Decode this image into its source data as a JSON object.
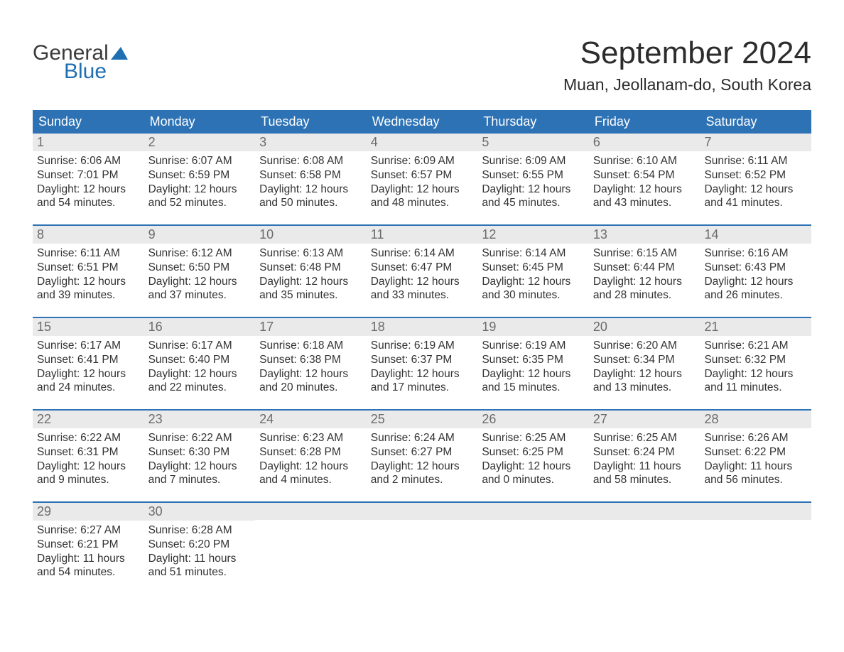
{
  "brand": {
    "name_part1": "General",
    "name_part2": "Blue",
    "accent_color": "#1f6fb2"
  },
  "title": "September 2024",
  "location": "Muan, Jeollanam-do, South Korea",
  "header_bg": "#2d72b5",
  "daynum_bg": "#eaeaea",
  "text_color": "#333333",
  "days_of_week": [
    "Sunday",
    "Monday",
    "Tuesday",
    "Wednesday",
    "Thursday",
    "Friday",
    "Saturday"
  ],
  "weeks": [
    [
      {
        "n": "1",
        "sunrise": "6:06 AM",
        "sunset": "7:01 PM",
        "dl1": "12 hours",
        "dl2": "and 54 minutes."
      },
      {
        "n": "2",
        "sunrise": "6:07 AM",
        "sunset": "6:59 PM",
        "dl1": "12 hours",
        "dl2": "and 52 minutes."
      },
      {
        "n": "3",
        "sunrise": "6:08 AM",
        "sunset": "6:58 PM",
        "dl1": "12 hours",
        "dl2": "and 50 minutes."
      },
      {
        "n": "4",
        "sunrise": "6:09 AM",
        "sunset": "6:57 PM",
        "dl1": "12 hours",
        "dl2": "and 48 minutes."
      },
      {
        "n": "5",
        "sunrise": "6:09 AM",
        "sunset": "6:55 PM",
        "dl1": "12 hours",
        "dl2": "and 45 minutes."
      },
      {
        "n": "6",
        "sunrise": "6:10 AM",
        "sunset": "6:54 PM",
        "dl1": "12 hours",
        "dl2": "and 43 minutes."
      },
      {
        "n": "7",
        "sunrise": "6:11 AM",
        "sunset": "6:52 PM",
        "dl1": "12 hours",
        "dl2": "and 41 minutes."
      }
    ],
    [
      {
        "n": "8",
        "sunrise": "6:11 AM",
        "sunset": "6:51 PM",
        "dl1": "12 hours",
        "dl2": "and 39 minutes."
      },
      {
        "n": "9",
        "sunrise": "6:12 AM",
        "sunset": "6:50 PM",
        "dl1": "12 hours",
        "dl2": "and 37 minutes."
      },
      {
        "n": "10",
        "sunrise": "6:13 AM",
        "sunset": "6:48 PM",
        "dl1": "12 hours",
        "dl2": "and 35 minutes."
      },
      {
        "n": "11",
        "sunrise": "6:14 AM",
        "sunset": "6:47 PM",
        "dl1": "12 hours",
        "dl2": "and 33 minutes."
      },
      {
        "n": "12",
        "sunrise": "6:14 AM",
        "sunset": "6:45 PM",
        "dl1": "12 hours",
        "dl2": "and 30 minutes."
      },
      {
        "n": "13",
        "sunrise": "6:15 AM",
        "sunset": "6:44 PM",
        "dl1": "12 hours",
        "dl2": "and 28 minutes."
      },
      {
        "n": "14",
        "sunrise": "6:16 AM",
        "sunset": "6:43 PM",
        "dl1": "12 hours",
        "dl2": "and 26 minutes."
      }
    ],
    [
      {
        "n": "15",
        "sunrise": "6:17 AM",
        "sunset": "6:41 PM",
        "dl1": "12 hours",
        "dl2": "and 24 minutes."
      },
      {
        "n": "16",
        "sunrise": "6:17 AM",
        "sunset": "6:40 PM",
        "dl1": "12 hours",
        "dl2": "and 22 minutes."
      },
      {
        "n": "17",
        "sunrise": "6:18 AM",
        "sunset": "6:38 PM",
        "dl1": "12 hours",
        "dl2": "and 20 minutes."
      },
      {
        "n": "18",
        "sunrise": "6:19 AM",
        "sunset": "6:37 PM",
        "dl1": "12 hours",
        "dl2": "and 17 minutes."
      },
      {
        "n": "19",
        "sunrise": "6:19 AM",
        "sunset": "6:35 PM",
        "dl1": "12 hours",
        "dl2": "and 15 minutes."
      },
      {
        "n": "20",
        "sunrise": "6:20 AM",
        "sunset": "6:34 PM",
        "dl1": "12 hours",
        "dl2": "and 13 minutes."
      },
      {
        "n": "21",
        "sunrise": "6:21 AM",
        "sunset": "6:32 PM",
        "dl1": "12 hours",
        "dl2": "and 11 minutes."
      }
    ],
    [
      {
        "n": "22",
        "sunrise": "6:22 AM",
        "sunset": "6:31 PM",
        "dl1": "12 hours",
        "dl2": "and 9 minutes."
      },
      {
        "n": "23",
        "sunrise": "6:22 AM",
        "sunset": "6:30 PM",
        "dl1": "12 hours",
        "dl2": "and 7 minutes."
      },
      {
        "n": "24",
        "sunrise": "6:23 AM",
        "sunset": "6:28 PM",
        "dl1": "12 hours",
        "dl2": "and 4 minutes."
      },
      {
        "n": "25",
        "sunrise": "6:24 AM",
        "sunset": "6:27 PM",
        "dl1": "12 hours",
        "dl2": "and 2 minutes."
      },
      {
        "n": "26",
        "sunrise": "6:25 AM",
        "sunset": "6:25 PM",
        "dl1": "12 hours",
        "dl2": "and 0 minutes."
      },
      {
        "n": "27",
        "sunrise": "6:25 AM",
        "sunset": "6:24 PM",
        "dl1": "11 hours",
        "dl2": "and 58 minutes."
      },
      {
        "n": "28",
        "sunrise": "6:26 AM",
        "sunset": "6:22 PM",
        "dl1": "11 hours",
        "dl2": "and 56 minutes."
      }
    ],
    [
      {
        "n": "29",
        "sunrise": "6:27 AM",
        "sunset": "6:21 PM",
        "dl1": "11 hours",
        "dl2": "and 54 minutes."
      },
      {
        "n": "30",
        "sunrise": "6:28 AM",
        "sunset": "6:20 PM",
        "dl1": "11 hours",
        "dl2": "and 51 minutes."
      },
      {
        "empty": true
      },
      {
        "empty": true
      },
      {
        "empty": true
      },
      {
        "empty": true
      },
      {
        "empty": true
      }
    ]
  ],
  "labels": {
    "sunrise_prefix": "Sunrise: ",
    "sunset_prefix": "Sunset: ",
    "daylight_prefix": "Daylight: "
  }
}
